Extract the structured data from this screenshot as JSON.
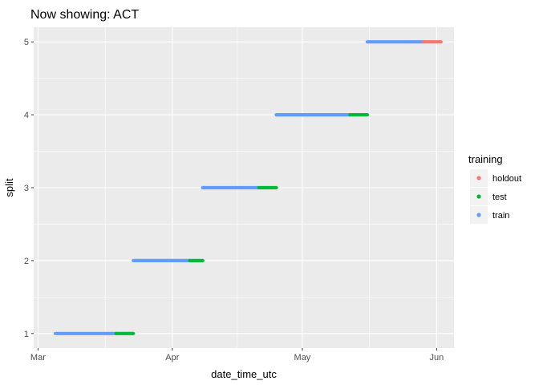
{
  "chart_data": {
    "type": "scatter",
    "title": "Now showing: ACT",
    "xlabel": "date_time_utc",
    "ylabel": "split",
    "x_range": [
      "2023-02-28",
      "2023-06-05"
    ],
    "y_range": [
      0.8,
      5.2
    ],
    "x_ticks": [
      {
        "date": "2023-03-01",
        "label": "Mar"
      },
      {
        "date": "2023-04-01",
        "label": "Apr"
      },
      {
        "date": "2023-05-01",
        "label": "May"
      },
      {
        "date": "2023-06-01",
        "label": "Jun"
      }
    ],
    "y_ticks": [
      1,
      2,
      3,
      4,
      5
    ],
    "grid": true,
    "legend": {
      "title": "training",
      "position": "right",
      "entries": [
        {
          "name": "holdout",
          "color": "#F8766D"
        },
        {
          "name": "test",
          "color": "#00BA38"
        },
        {
          "name": "train",
          "color": "#619CFF"
        }
      ]
    },
    "series": [
      {
        "name": "train",
        "color": "#619CFF",
        "segments": [
          {
            "split": 1,
            "start": "2023-03-05",
            "end": "2023-03-19"
          },
          {
            "split": 2,
            "start": "2023-03-23",
            "end": "2023-04-05"
          },
          {
            "split": 3,
            "start": "2023-04-08",
            "end": "2023-04-21"
          },
          {
            "split": 4,
            "start": "2023-04-25",
            "end": "2023-05-12"
          },
          {
            "split": 5,
            "start": "2023-05-16",
            "end": "2023-05-29"
          }
        ]
      },
      {
        "name": "test",
        "color": "#00BA38",
        "segments": [
          {
            "split": 1,
            "start": "2023-03-19",
            "end": "2023-03-23"
          },
          {
            "split": 2,
            "start": "2023-04-05",
            "end": "2023-04-08"
          },
          {
            "split": 3,
            "start": "2023-04-21",
            "end": "2023-04-25"
          },
          {
            "split": 4,
            "start": "2023-05-12",
            "end": "2023-05-16"
          }
        ]
      },
      {
        "name": "holdout",
        "color": "#F8766D",
        "segments": [
          {
            "split": 5,
            "start": "2023-05-29",
            "end": "2023-06-02"
          }
        ]
      }
    ]
  }
}
